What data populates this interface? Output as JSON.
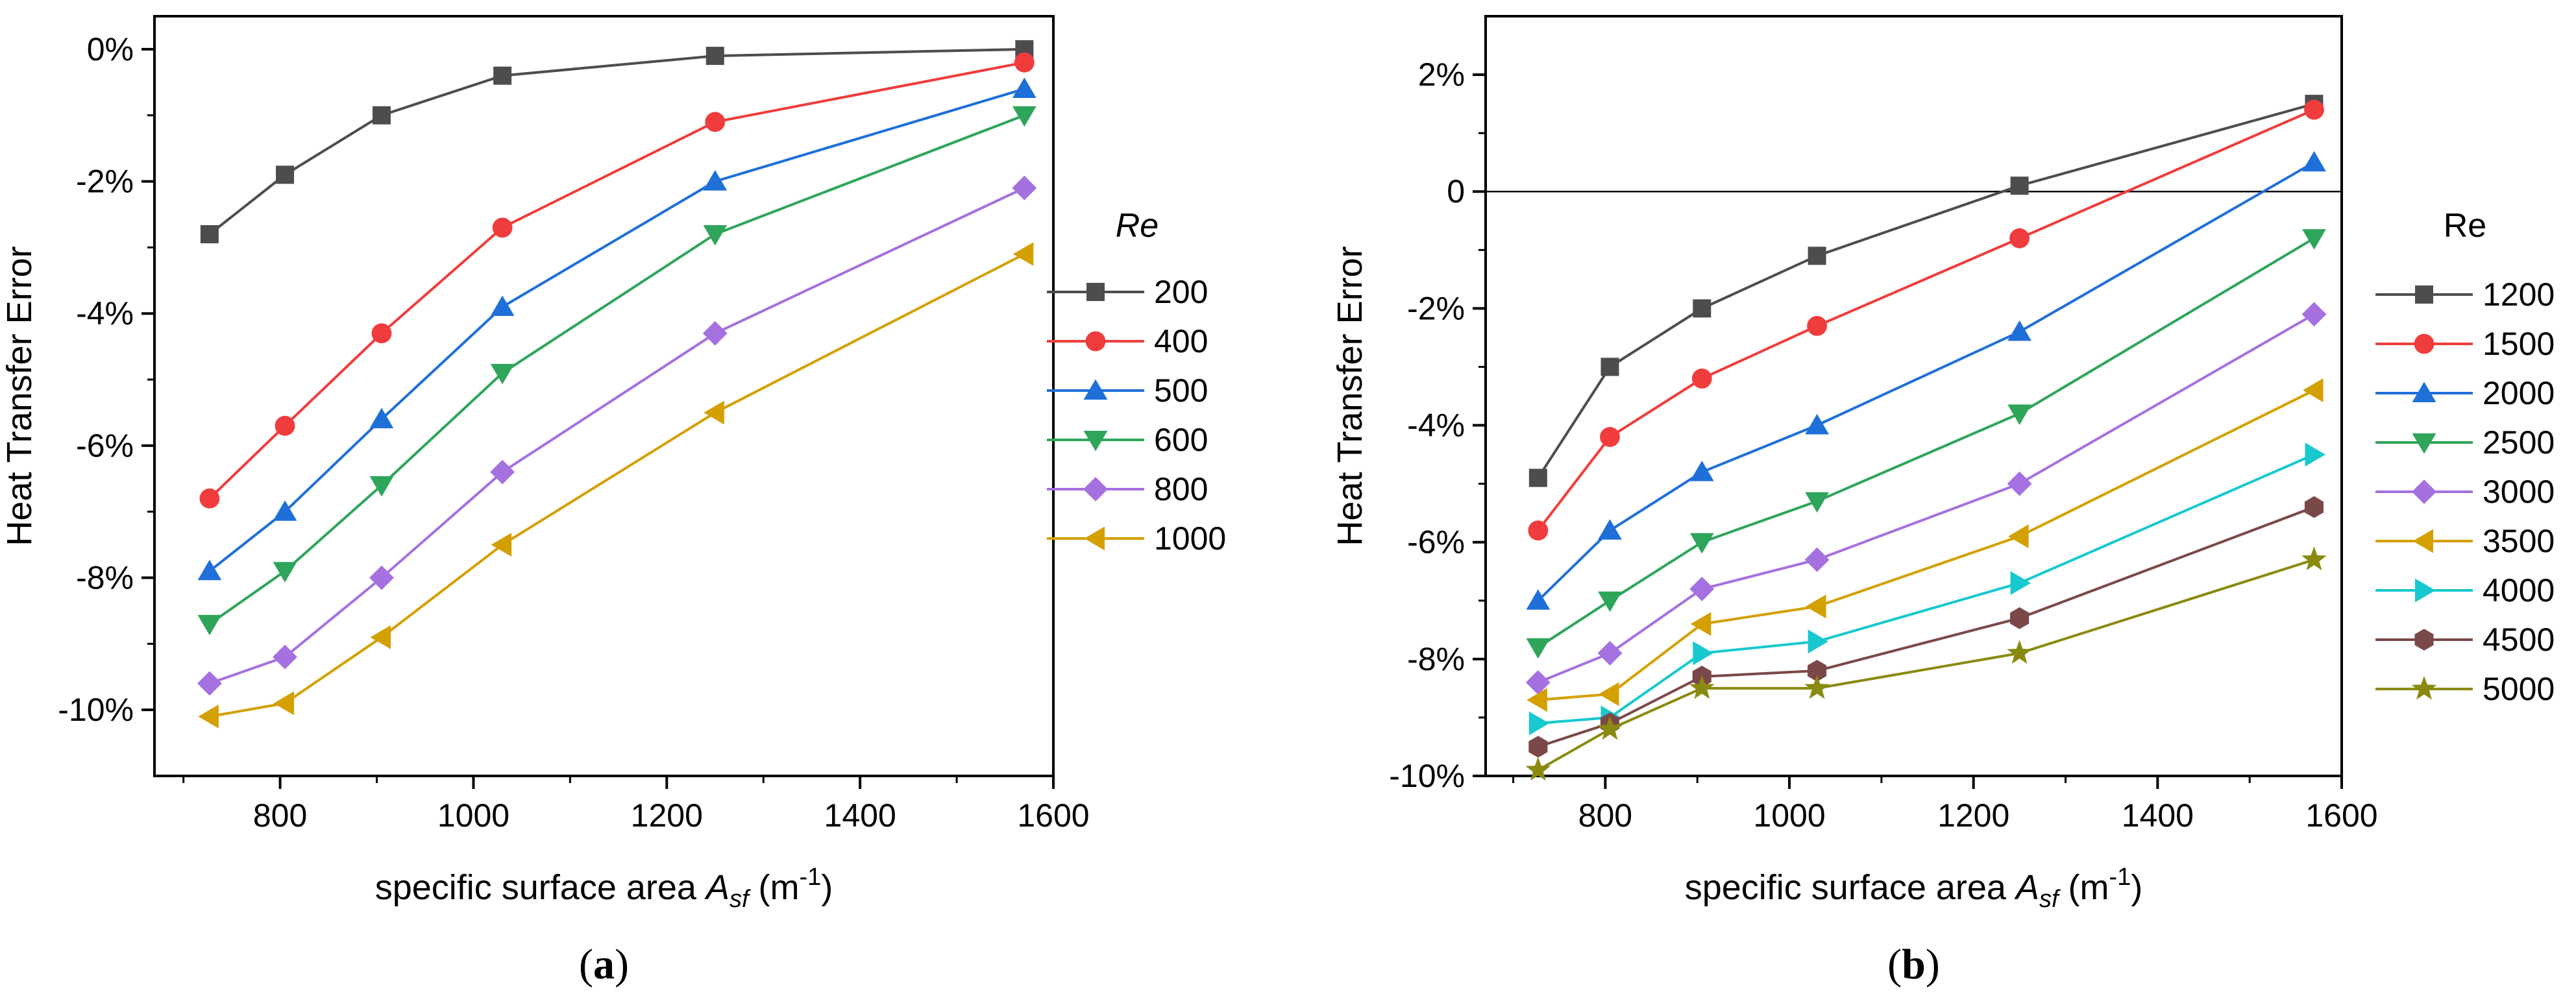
{
  "chart_data": [
    {
      "type": "line",
      "panel_label": "(a)",
      "panel_letter": "a",
      "xlabel": "specific surface area A_sf (m^-1)",
      "xlabel_parts": {
        "prefix": "specific surface area ",
        "symbol": "A",
        "subscript": "sf",
        "unit_open": " (m",
        "unit_exp": "-1",
        "unit_close": ")"
      },
      "ylabel": "Heat Transfer Error",
      "xlim": [
        670,
        1600
      ],
      "ylim": [
        -11,
        0.5
      ],
      "xticks": [
        800,
        1000,
        1200,
        1400,
        1600
      ],
      "xtick_labels": [
        "800",
        "1000",
        "1200",
        "1400",
        "1600"
      ],
      "yticks": [
        0,
        -2,
        -4,
        -6,
        -8,
        -10
      ],
      "ytick_labels": [
        "0%",
        "-2%",
        "-4%",
        "-6%",
        "-8%",
        "-10%"
      ],
      "legend_title": "Re",
      "legend_title_italic": true,
      "legend_position": "right",
      "x": [
        727,
        805,
        905,
        1030,
        1250,
        1570
      ],
      "series": [
        {
          "name": "200",
          "color": "#4d4d4d",
          "marker": "square",
          "values": [
            -2.8,
            -1.9,
            -1.0,
            -0.4,
            -0.1,
            0.0
          ]
        },
        {
          "name": "400",
          "color": "#f03c3c",
          "marker": "circle",
          "values": [
            -6.8,
            -5.7,
            -4.3,
            -2.7,
            -1.1,
            -0.2
          ]
        },
        {
          "name": "500",
          "color": "#1f6fd9",
          "marker": "triangle-up",
          "values": [
            -7.9,
            -7.0,
            -5.6,
            -3.9,
            -2.0,
            -0.6
          ]
        },
        {
          "name": "600",
          "color": "#2ea55a",
          "marker": "triangle-down",
          "values": [
            -8.7,
            -7.9,
            -6.6,
            -4.9,
            -2.8,
            -1.0
          ]
        },
        {
          "name": "800",
          "color": "#a570e0",
          "marker": "diamond",
          "values": [
            -9.6,
            -9.2,
            -8.0,
            -6.4,
            -4.3,
            -2.1
          ]
        },
        {
          "name": "1000",
          "color": "#d4a000",
          "marker": "triangle-left",
          "values": [
            -10.1,
            -9.9,
            -8.9,
            -7.5,
            -5.5,
            -3.1
          ]
        }
      ]
    },
    {
      "type": "line",
      "panel_label": "(b)",
      "panel_letter": "b",
      "xlabel": "specific surface area A_sf (m^-1)",
      "xlabel_parts": {
        "prefix": "specific surface area ",
        "symbol": "A",
        "subscript": "sf",
        "unit_open": " (m",
        "unit_exp": "-1",
        "unit_close": ")"
      },
      "ylabel": "Heat Transfer Error",
      "xlim": [
        670,
        1600
      ],
      "ylim": [
        -10,
        3
      ],
      "xticks": [
        800,
        1000,
        1200,
        1400,
        1600
      ],
      "xtick_labels": [
        "800",
        "1000",
        "1200",
        "1400",
        "1600"
      ],
      "yticks": [
        2,
        0,
        -2,
        -4,
        -6,
        -8,
        -10
      ],
      "ytick_labels": [
        "2%",
        "0",
        "-2%",
        "-4%",
        "-6%",
        "-8%",
        "-10%"
      ],
      "reference_line": 0,
      "legend_title": "Re",
      "legend_title_italic": false,
      "legend_position": "right",
      "x": [
        727,
        805,
        905,
        1030,
        1250,
        1570
      ],
      "series": [
        {
          "name": "1200",
          "color": "#4d4d4d",
          "marker": "square",
          "values": [
            -4.9,
            -3.0,
            -2.0,
            -1.1,
            0.1,
            1.5
          ]
        },
        {
          "name": "1500",
          "color": "#f03c3c",
          "marker": "circle",
          "values": [
            -5.8,
            -4.2,
            -3.2,
            -2.3,
            -0.8,
            1.4
          ]
        },
        {
          "name": "2000",
          "color": "#1f6fd9",
          "marker": "triangle-up",
          "values": [
            -7.0,
            -5.8,
            -4.8,
            -4.0,
            -2.4,
            0.5
          ]
        },
        {
          "name": "2500",
          "color": "#2ea55a",
          "marker": "triangle-down",
          "values": [
            -7.8,
            -7.0,
            -6.0,
            -5.3,
            -3.8,
            -0.8
          ]
        },
        {
          "name": "3000",
          "color": "#a570e0",
          "marker": "diamond",
          "values": [
            -8.4,
            -7.9,
            -6.8,
            -6.3,
            -5.0,
            -2.1
          ]
        },
        {
          "name": "3500",
          "color": "#d4a000",
          "marker": "triangle-left",
          "values": [
            -8.7,
            -8.6,
            -7.4,
            -7.1,
            -5.9,
            -3.4
          ]
        },
        {
          "name": "4000",
          "color": "#17c9cf",
          "marker": "triangle-right",
          "values": [
            -9.1,
            -9.0,
            -7.9,
            -7.7,
            -6.7,
            -4.5
          ]
        },
        {
          "name": "4500",
          "color": "#7a4848",
          "marker": "hexagon",
          "values": [
            -9.5,
            -9.1,
            -8.3,
            -8.2,
            -7.3,
            -5.4
          ]
        },
        {
          "name": "5000",
          "color": "#8a8a10",
          "marker": "star",
          "values": [
            -9.9,
            -9.2,
            -8.5,
            -8.5,
            -7.9,
            -6.3
          ]
        }
      ]
    }
  ]
}
